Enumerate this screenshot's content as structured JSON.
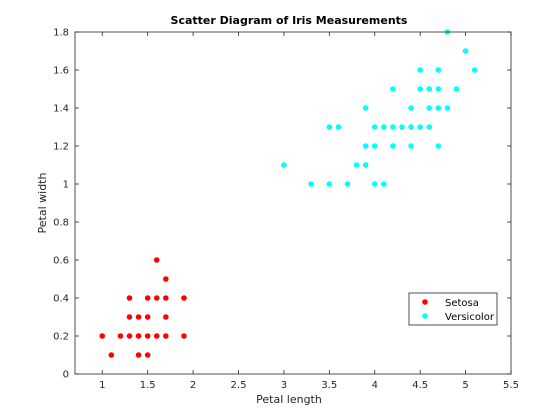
{
  "chart_data": {
    "type": "scatter",
    "title": "Scatter Diagram of Iris Measurements",
    "xlabel": "Petal length",
    "ylabel": "Petal width",
    "xlim": [
      0.7,
      5.5
    ],
    "ylim": [
      0,
      1.8
    ],
    "xticks": [
      1,
      1.5,
      2,
      2.5,
      3,
      3.5,
      4,
      4.5,
      5,
      5.5
    ],
    "xtick_labels": [
      "1",
      "1.5",
      "2",
      "2.5",
      "3",
      "3.5",
      "4",
      "4.5",
      "5",
      "5.5"
    ],
    "yticks": [
      0,
      0.2,
      0.4,
      0.6,
      0.8,
      1.0,
      1.2,
      1.4,
      1.6,
      1.8
    ],
    "ytick_labels": [
      "0",
      "0.2",
      "0.4",
      "0.6",
      "0.8",
      "1",
      "1.2",
      "1.4",
      "1.6",
      "1.8"
    ],
    "grid": false,
    "legend_position": "lower-right",
    "series": [
      {
        "name": "Setosa",
        "color": "#ff0000",
        "points": [
          [
            1.0,
            0.2
          ],
          [
            1.1,
            0.1
          ],
          [
            1.2,
            0.2
          ],
          [
            1.3,
            0.2
          ],
          [
            1.3,
            0.3
          ],
          [
            1.3,
            0.4
          ],
          [
            1.4,
            0.1
          ],
          [
            1.4,
            0.2
          ],
          [
            1.4,
            0.3
          ],
          [
            1.5,
            0.1
          ],
          [
            1.5,
            0.2
          ],
          [
            1.5,
            0.3
          ],
          [
            1.5,
            0.4
          ],
          [
            1.6,
            0.2
          ],
          [
            1.6,
            0.4
          ],
          [
            1.6,
            0.6
          ],
          [
            1.7,
            0.2
          ],
          [
            1.7,
            0.3
          ],
          [
            1.7,
            0.4
          ],
          [
            1.7,
            0.5
          ],
          [
            1.9,
            0.2
          ],
          [
            1.9,
            0.4
          ]
        ]
      },
      {
        "name": "Versicolor",
        "color": "#00ffff",
        "points": [
          [
            3.0,
            1.1
          ],
          [
            3.3,
            1.0
          ],
          [
            3.5,
            1.0
          ],
          [
            3.5,
            1.3
          ],
          [
            3.6,
            1.3
          ],
          [
            3.7,
            1.0
          ],
          [
            3.8,
            1.1
          ],
          [
            3.9,
            1.1
          ],
          [
            3.9,
            1.2
          ],
          [
            3.9,
            1.4
          ],
          [
            4.0,
            1.0
          ],
          [
            4.0,
            1.2
          ],
          [
            4.0,
            1.3
          ],
          [
            4.1,
            1.0
          ],
          [
            4.1,
            1.3
          ],
          [
            4.2,
            1.2
          ],
          [
            4.2,
            1.3
          ],
          [
            4.2,
            1.5
          ],
          [
            4.3,
            1.3
          ],
          [
            4.4,
            1.2
          ],
          [
            4.4,
            1.3
          ],
          [
            4.4,
            1.4
          ],
          [
            4.5,
            1.3
          ],
          [
            4.5,
            1.5
          ],
          [
            4.5,
            1.6
          ],
          [
            4.6,
            1.3
          ],
          [
            4.6,
            1.4
          ],
          [
            4.6,
            1.5
          ],
          [
            4.7,
            1.2
          ],
          [
            4.7,
            1.4
          ],
          [
            4.7,
            1.5
          ],
          [
            4.7,
            1.6
          ],
          [
            4.8,
            1.4
          ],
          [
            4.8,
            1.8
          ],
          [
            4.9,
            1.5
          ],
          [
            5.0,
            1.7
          ],
          [
            5.1,
            1.6
          ]
        ]
      }
    ]
  }
}
